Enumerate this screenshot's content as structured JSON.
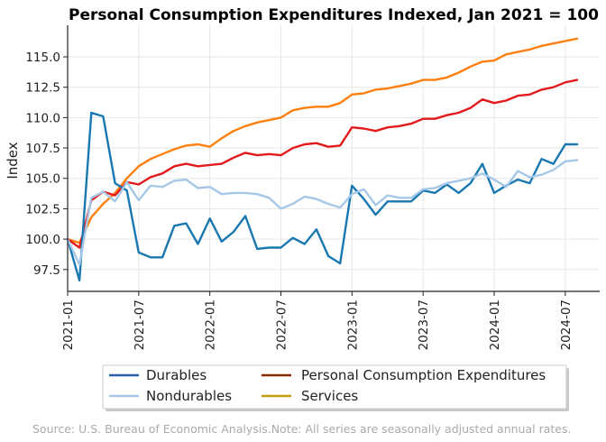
{
  "chart_data": {
    "type": "line",
    "title": "Personal Consumption Expenditures Indexed, Jan 2021 = 100",
    "xlabel": "",
    "ylabel": "Index",
    "ylim": [
      95.7,
      117.6
    ],
    "x_start": "2021-01",
    "yticks": [
      {
        "value": 97.5,
        "label": "97.5"
      },
      {
        "value": 100.0,
        "label": "100.0"
      },
      {
        "value": 102.5,
        "label": "102.5"
      },
      {
        "value": 105.0,
        "label": "105.0"
      },
      {
        "value": 107.5,
        "label": "107.5"
      },
      {
        "value": 110.0,
        "label": "110.0"
      },
      {
        "value": 112.5,
        "label": "112.5"
      },
      {
        "value": 115.0,
        "label": "115.0"
      }
    ],
    "xticks": [
      {
        "index": 0,
        "label": "2021-01"
      },
      {
        "index": 6,
        "label": "2021-07"
      },
      {
        "index": 12,
        "label": "2022-01"
      },
      {
        "index": 18,
        "label": "2022-07"
      },
      {
        "index": 24,
        "label": "2023-01"
      },
      {
        "index": 30,
        "label": "2023-07"
      },
      {
        "index": 36,
        "label": "2024-01"
      },
      {
        "index": 42,
        "label": "2024-07"
      }
    ],
    "grid": true,
    "legend_position": "bottom-center",
    "series": [
      {
        "name": "Services",
        "color": "#ff7f0e",
        "legend_color": "#c49c00",
        "values": [
          100.0,
          99.7,
          101.8,
          102.9,
          103.8,
          105.0,
          106.0,
          106.6,
          107.0,
          107.4,
          107.7,
          107.8,
          107.6,
          108.3,
          108.9,
          109.3,
          109.6,
          109.8,
          110.0,
          110.6,
          110.8,
          110.9,
          110.9,
          111.2,
          111.9,
          112.0,
          112.3,
          112.4,
          112.6,
          112.8,
          113.1,
          113.1,
          113.3,
          113.7,
          114.2,
          114.6,
          114.7,
          115.2,
          115.4,
          115.6,
          115.9,
          116.1,
          116.3,
          116.5
        ]
      },
      {
        "name": "Personal Consumption Expenditures",
        "color": "#e31a1c",
        "legend_color": "#8b2500",
        "values": [
          100.0,
          99.3,
          103.2,
          103.9,
          103.6,
          104.7,
          104.5,
          105.1,
          105.4,
          106.0,
          106.2,
          106.0,
          106.1,
          106.2,
          106.7,
          107.1,
          106.9,
          107.0,
          106.9,
          107.5,
          107.8,
          107.9,
          107.6,
          107.7,
          109.2,
          109.1,
          108.9,
          109.2,
          109.3,
          109.5,
          109.9,
          109.9,
          110.2,
          110.4,
          110.8,
          111.5,
          111.2,
          111.4,
          111.8,
          111.9,
          112.3,
          112.5,
          112.9,
          113.1
        ]
      },
      {
        "name": "Durables",
        "color": "#1a78b0",
        "legend_color": "#2a5db0",
        "values": [
          100.0,
          96.6,
          110.4,
          110.1,
          104.6,
          104.0,
          98.9,
          98.5,
          98.5,
          101.1,
          101.3,
          99.6,
          101.7,
          99.8,
          100.6,
          101.9,
          99.2,
          99.3,
          99.3,
          100.1,
          99.6,
          100.8,
          98.6,
          98.0,
          104.4,
          103.3,
          102.0,
          103.1,
          103.1,
          103.1,
          104.0,
          103.8,
          104.5,
          103.8,
          104.6,
          106.2,
          103.8,
          104.4,
          104.9,
          104.6,
          106.6,
          106.2,
          107.8,
          107.8
        ]
      },
      {
        "name": "Nondurables",
        "color": "#a6c8e8",
        "legend_color": "#a6c8e8",
        "values": [
          100.0,
          97.9,
          103.4,
          103.9,
          103.1,
          104.7,
          103.2,
          104.4,
          104.3,
          104.8,
          104.9,
          104.2,
          104.3,
          103.7,
          103.8,
          103.8,
          103.7,
          103.4,
          102.5,
          102.9,
          103.5,
          103.3,
          102.9,
          102.6,
          103.7,
          104.1,
          102.8,
          103.6,
          103.4,
          103.4,
          104.1,
          104.2,
          104.6,
          104.8,
          105.0,
          105.4,
          104.9,
          104.3,
          105.6,
          105.1,
          105.3,
          105.7,
          106.4,
          106.5
        ]
      }
    ]
  },
  "legend": {
    "items": [
      {
        "label": "Durables",
        "color": "#2a5db0"
      },
      {
        "label": "Personal Consumption Expenditures",
        "color": "#8b2500"
      },
      {
        "label": "Nondurables",
        "color": "#a6c8e8"
      },
      {
        "label": "Services",
        "color": "#c49c00"
      }
    ]
  },
  "source_note": "Source: U.S. Bureau of Economic Analysis.Note: All series are seasonally adjusted annual rates."
}
